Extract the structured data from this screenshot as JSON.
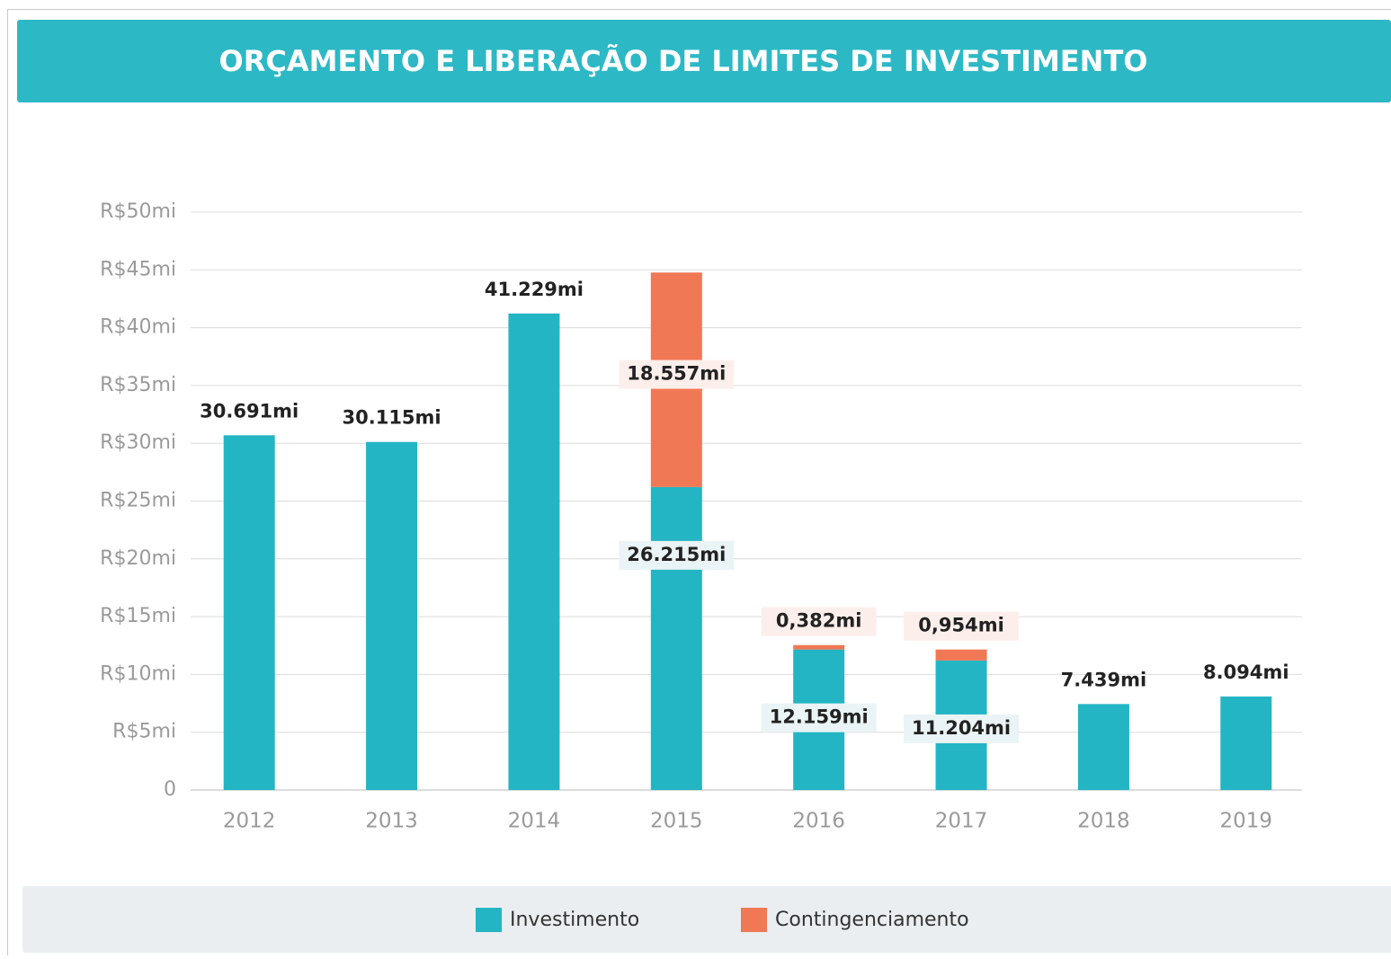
{
  "chart_data": {
    "type": "bar",
    "stacked": true,
    "title": "ORÇAMENTO E LIBERAÇÃO DE LIMITES DE INVESTIMENTO",
    "categories": [
      "2012",
      "2013",
      "2014",
      "2015",
      "2016",
      "2017",
      "2018",
      "2019"
    ],
    "series": [
      {
        "name": "Investimento",
        "color": "#23b5c4",
        "values": [
          30.691,
          30.115,
          41.229,
          26.215,
          12.159,
          11.204,
          7.439,
          8.094
        ],
        "value_labels": [
          "30.691mi",
          "30.115mi",
          "41.229mi",
          "26.215mi",
          "12.159mi",
          "11.204mi",
          "7.439mi",
          "8.094mi"
        ]
      },
      {
        "name": "Contingenciamento",
        "color": "#f07855",
        "values": [
          null,
          null,
          null,
          18.557,
          0.382,
          0.954,
          null,
          null
        ],
        "value_labels": [
          null,
          null,
          null,
          "18.557mi",
          "0,382mi",
          "0,954mi",
          null,
          null
        ]
      }
    ],
    "ylim": [
      0,
      50
    ],
    "yticks": [
      0,
      {
        "value": 5,
        "label": "R$5mi"
      },
      {
        "value": 10,
        "label": "R$10mi"
      },
      {
        "value": 15,
        "label": "R$15mi"
      },
      {
        "value": 20,
        "label": "R$20mi"
      },
      {
        "value": 25,
        "label": "R$25mi"
      },
      {
        "value": 30,
        "label": "R$30mi"
      },
      {
        "value": 35,
        "label": "R$35mi"
      },
      {
        "value": 40,
        "label": "R$40mi"
      },
      {
        "value": 45,
        "label": "R$45mi"
      },
      {
        "value": 50,
        "label": "R$50mi"
      }
    ],
    "grid": true,
    "legend": "bottom"
  }
}
